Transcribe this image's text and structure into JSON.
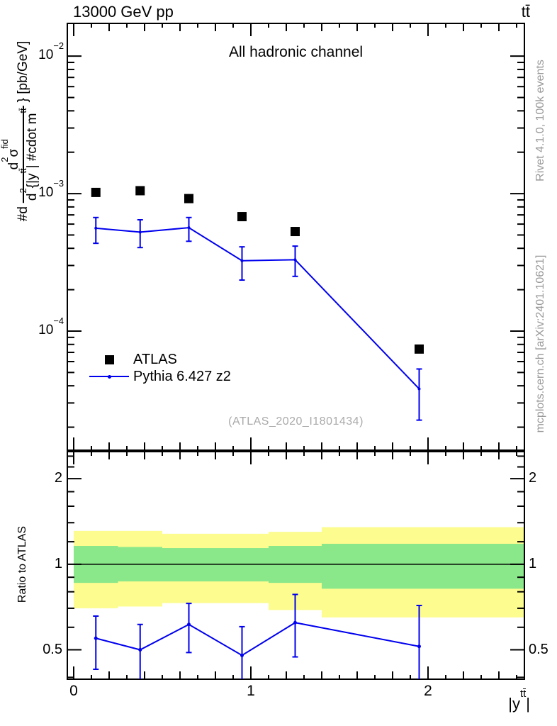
{
  "header": {
    "beam": "13000 GeV pp",
    "process_tag": "tt̄"
  },
  "titles": {
    "channel": "All hadronic channel",
    "watermark": "(ATLAS_2020_I1801434)"
  },
  "side_notes": {
    "generator": "Rivet 4.1.0,  100k events",
    "site": "mcplots.cern.ch [arXiv:2401.10621]"
  },
  "legend": {
    "items": [
      {
        "label": "ATLAS"
      },
      {
        "label": "Pythia 6.427 z2"
      }
    ]
  },
  "ylabel": {
    "prefix": "#d",
    "num_d": "d",
    "num_d_sup": "2",
    "num_sigma": "σ",
    "num_sigma_sup": "fid",
    "den_d": "d",
    "den_d_sup": "2",
    "den_open": "{|y",
    "den_y_sup": "tt̄",
    "den_mid": "| #cdot m",
    "den_m_sup": "tt̄",
    "suffix": "} [pb/GeV]"
  },
  "ratio_axis_title": "Ratio to ATLAS",
  "xlabel_parts": {
    "base": "|y",
    "sup": "tt̄",
    "end": "|"
  },
  "chart_data": {
    "type": "line",
    "title": "All hadronic channel",
    "x_axis": {
      "min": -0.036,
      "max": 2.544,
      "major_ticks": [
        0,
        1,
        2
      ],
      "minor_tick_step": 0.1
    },
    "y_main_axis": {
      "scale": "log10",
      "min": 1.36e-05,
      "max": 0.0173,
      "decade_exponents": [
        -2,
        -3,
        -4
      ],
      "units": "pb/GeV"
    },
    "y_ratio_axis": {
      "scale": "log",
      "min": 0.394,
      "max": 2.49,
      "labeled_ticks": [
        2,
        1,
        0.5
      ],
      "minor_ticks": [
        0.4,
        0.6,
        0.7,
        0.8,
        0.9,
        1.2,
        1.4,
        1.6,
        1.8,
        2.2,
        2.4
      ]
    },
    "bin_centers": [
      0.125,
      0.375,
      0.65,
      0.95,
      1.25,
      1.95
    ],
    "series": [
      {
        "name": "ATLAS",
        "marker": "filled-square",
        "color": "#000000",
        "y": [
          0.00102,
          0.00105,
          0.00092,
          0.00068,
          0.00053,
          7.4e-05
        ]
      },
      {
        "name": "Pythia 6.427 z2",
        "marker": "line-with-dots",
        "color": "#0000ee",
        "y": [
          0.00056,
          0.000525,
          0.000565,
          0.000325,
          0.00033,
          3.8e-05
        ],
        "y_lo": [
          0.000435,
          0.000405,
          0.00045,
          0.000235,
          0.00025,
          2.25e-05
        ],
        "y_hi": [
          0.00067,
          0.000645,
          0.00067,
          0.00041,
          0.000415,
          5.3e-05
        ]
      }
    ],
    "ratio": {
      "reference": "ATLAS",
      "y": [
        0.549,
        0.5,
        0.614,
        0.478,
        0.623,
        0.514
      ],
      "y_lo": [
        0.427,
        0.386,
        0.489,
        0.346,
        0.472,
        0.304
      ],
      "y_hi": [
        0.657,
        0.614,
        0.728,
        0.603,
        0.783,
        0.716
      ],
      "bands": [
        {
          "x0": 0.0,
          "x1": 0.25,
          "yellow_lo": 0.7,
          "yellow_hi": 1.31,
          "green_lo": 0.86,
          "green_hi": 1.16
        },
        {
          "x0": 0.25,
          "x1": 0.5,
          "yellow_lo": 0.71,
          "yellow_hi": 1.31,
          "green_lo": 0.87,
          "green_hi": 1.15
        },
        {
          "x0": 0.5,
          "x1": 0.8,
          "yellow_lo": 0.73,
          "yellow_hi": 1.28,
          "green_lo": 0.87,
          "green_hi": 1.14
        },
        {
          "x0": 0.8,
          "x1": 1.1,
          "yellow_lo": 0.73,
          "yellow_hi": 1.28,
          "green_lo": 0.87,
          "green_hi": 1.14
        },
        {
          "x0": 1.1,
          "x1": 1.4,
          "yellow_lo": 0.69,
          "yellow_hi": 1.3,
          "green_lo": 0.86,
          "green_hi": 1.16
        },
        {
          "x0": 1.4,
          "x1": 2.544,
          "yellow_lo": 0.65,
          "yellow_hi": 1.35,
          "green_lo": 0.82,
          "green_hi": 1.18
        }
      ]
    },
    "colors": {
      "mc_line": "#0000ee",
      "band_green_1sigma": "#8ae88a",
      "band_yellow_2sigma": "#fcfc8f",
      "data_marker": "#000000"
    }
  }
}
